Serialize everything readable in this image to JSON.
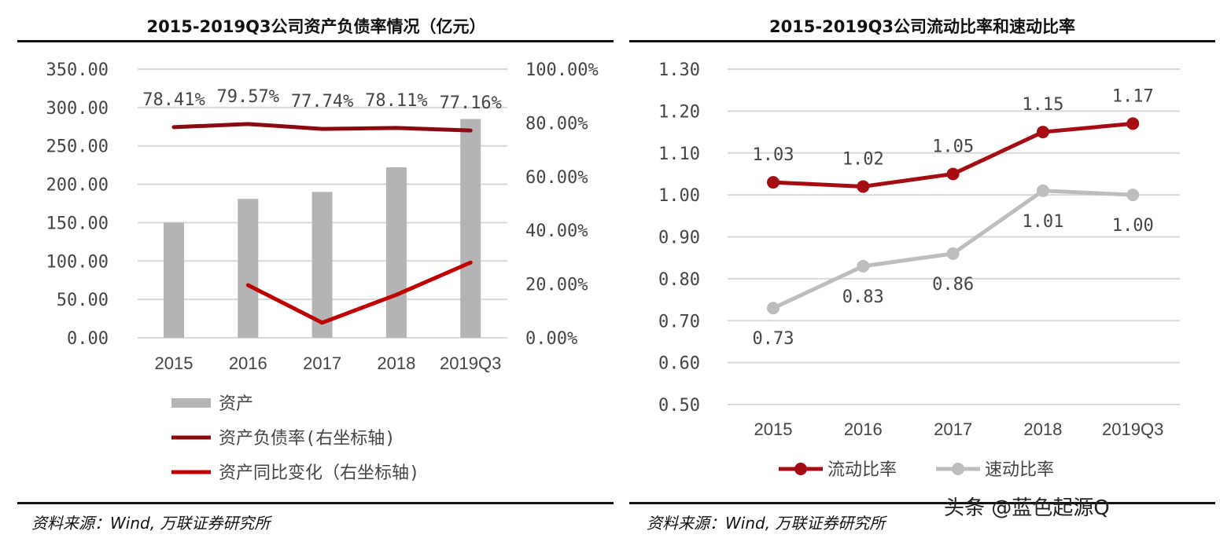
{
  "chart_data": [
    {
      "type": "bar+line",
      "title": "2015-2019Q3公司资产负债率情况（亿元）",
      "categories": [
        "2015",
        "2016",
        "2017",
        "2018",
        "2019Q3"
      ],
      "ylim": [
        0,
        350
      ],
      "y_ticks": [
        "0.00",
        "50.00",
        "100.00",
        "150.00",
        "200.00",
        "250.00",
        "300.00",
        "350.00"
      ],
      "y2lim": [
        0,
        100
      ],
      "y2_ticks": [
        "0.00%",
        "20.00%",
        "40.00%",
        "60.00%",
        "80.00%",
        "100.00%"
      ],
      "grid": true,
      "legend": "bottom",
      "series": [
        {
          "name": "资产",
          "type": "bar",
          "axis": "left",
          "color": "#b4b4b4",
          "values": [
            150,
            181,
            190,
            222,
            285
          ]
        },
        {
          "name": "资产负债率(右坐标轴)",
          "type": "line",
          "axis": "right",
          "color": "#8b0a0f",
          "values": [
            78.41,
            79.57,
            77.74,
            78.11,
            77.16
          ],
          "labels": [
            "78.41%",
            "79.57%",
            "77.74%",
            "78.11%",
            "77.16%"
          ]
        },
        {
          "name": "资产同比变化（右坐标轴)",
          "type": "line",
          "axis": "right",
          "color": "#c00000",
          "values": [
            null,
            19.6,
            5.6,
            16,
            28
          ]
        }
      ],
      "source": "资料来源：Wind, 万联证券研究所"
    },
    {
      "type": "line",
      "title": "2015-2019Q3公司流动比率和速动比率",
      "categories": [
        "2015",
        "2016",
        "2017",
        "2018",
        "2019Q3"
      ],
      "ylim": [
        0.5,
        1.3
      ],
      "y_ticks": [
        "0.50",
        "0.60",
        "0.70",
        "0.80",
        "0.90",
        "1.00",
        "1.10",
        "1.20",
        "1.30"
      ],
      "grid": true,
      "legend": "bottom",
      "series": [
        {
          "name": "流动比率",
          "color": "#a50d12",
          "values": [
            1.03,
            1.02,
            1.05,
            1.15,
            1.17
          ],
          "labels": [
            "1.03",
            "1.02",
            "1.05",
            "1.15",
            "1.17"
          ]
        },
        {
          "name": "速动比率",
          "color": "#bdbdbd",
          "values": [
            0.73,
            0.83,
            0.86,
            1.01,
            1.0
          ],
          "labels": [
            "0.73",
            "0.83",
            "0.86",
            "1.01",
            "1.00"
          ]
        }
      ],
      "source": "资料来源：Wind, 万联证券研究所"
    }
  ],
  "watermark": "头条 @蓝色起源Q"
}
